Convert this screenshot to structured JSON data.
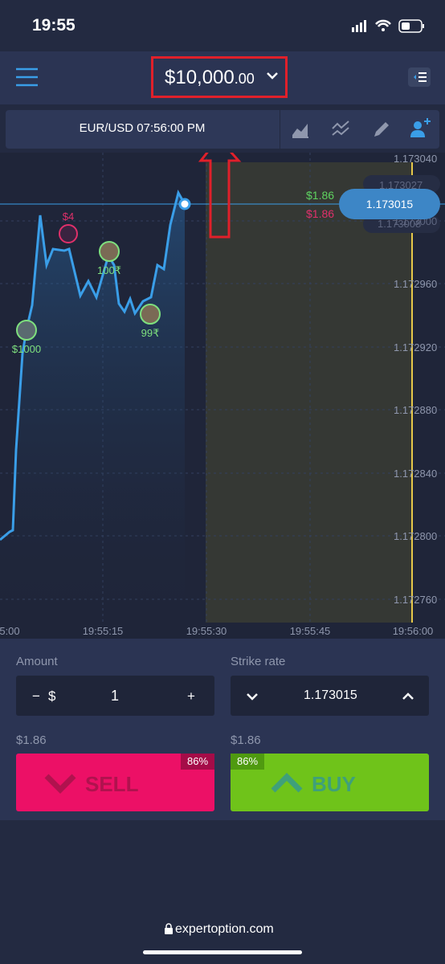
{
  "status_bar": {
    "time": "19:55"
  },
  "header": {
    "balance": "$10,000",
    "balance_cents": ".00"
  },
  "toolbar": {
    "asset": "EUR/USD 07:56:00 PM"
  },
  "chart": {
    "y_labels": [
      "1.173040",
      "1.172960",
      "1.172920",
      "1.172880",
      "1.172840",
      "1.172800",
      "1.172760"
    ],
    "faded_labels": [
      "1.173027",
      "1.173000",
      "1.173008"
    ],
    "x_labels": [
      "5:00",
      "19:55:15",
      "19:55:30",
      "19:55:45",
      "19:56:00"
    ],
    "price_tag": "1.173015",
    "payout_up": "$1.86",
    "payout_down": "$1.86",
    "markers": [
      "$4",
      "$1000",
      "100₹",
      "99₹"
    ]
  },
  "panel": {
    "amount_label": "Amount",
    "minus": "−",
    "currency": "$",
    "amount": "1",
    "plus": "+",
    "strike_label": "Strike rate",
    "strike": "1.173015",
    "sell_payout": "$1.86",
    "buy_payout": "$1.86",
    "sell_percent": "86%",
    "buy_percent": "86%",
    "sell": "SELL",
    "buy": "BUY"
  },
  "footer": {
    "url": "expertoption.com"
  }
}
